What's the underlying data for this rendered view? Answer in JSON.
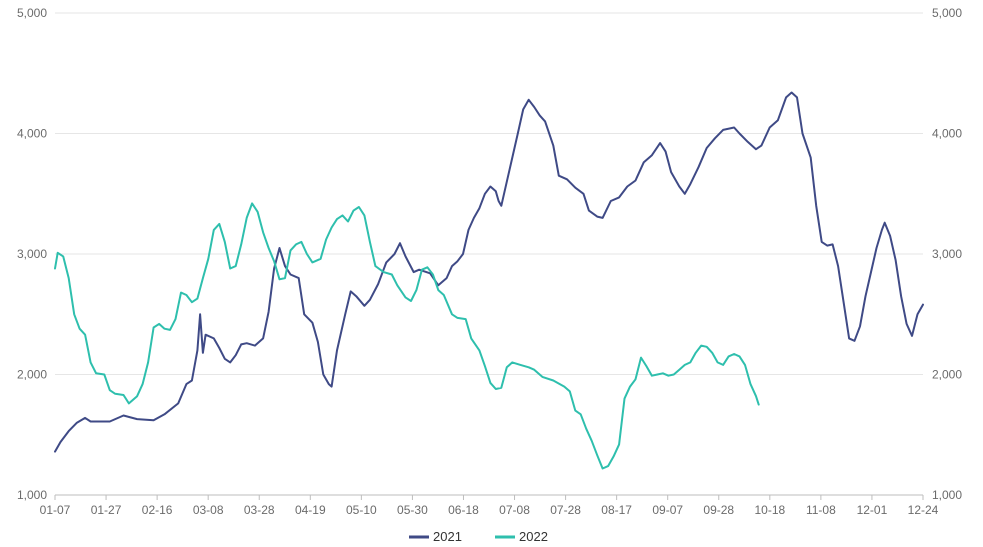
{
  "chart_data": {
    "type": "line",
    "title": "",
    "xlabel": "",
    "ylabel": "",
    "ylim": [
      1000,
      5000
    ],
    "y_ticks": [
      "1,000",
      "2,000",
      "3,000",
      "4,000",
      "5,000"
    ],
    "y_tick_values": [
      1000,
      2000,
      3000,
      4000,
      5000
    ],
    "x_ticks": [
      "01-07",
      "01-27",
      "02-16",
      "03-08",
      "03-28",
      "04-19",
      "05-10",
      "05-30",
      "06-18",
      "07-08",
      "07-28",
      "08-17",
      "09-07",
      "09-28",
      "10-18",
      "11-08",
      "12-01",
      "12-24"
    ],
    "grid": true,
    "legend_position": "bottom",
    "series": [
      {
        "name": "2021",
        "color": "#3f4a86",
        "points": [
          [
            0,
            1360
          ],
          [
            2,
            1440
          ],
          [
            5,
            1530
          ],
          [
            8,
            1600
          ],
          [
            11,
            1640
          ],
          [
            13,
            1610
          ],
          [
            20,
            1610
          ],
          [
            25,
            1660
          ],
          [
            30,
            1630
          ],
          [
            36,
            1620
          ],
          [
            40,
            1670
          ],
          [
            45,
            1760
          ],
          [
            48,
            1920
          ],
          [
            50,
            1950
          ],
          [
            52,
            2200
          ],
          [
            53,
            2500
          ],
          [
            54,
            2180
          ],
          [
            55,
            2330
          ],
          [
            58,
            2300
          ],
          [
            60,
            2220
          ],
          [
            62,
            2130
          ],
          [
            64,
            2100
          ],
          [
            66,
            2160
          ],
          [
            68,
            2250
          ],
          [
            70,
            2260
          ],
          [
            73,
            2240
          ],
          [
            76,
            2300
          ],
          [
            78,
            2520
          ],
          [
            80,
            2880
          ],
          [
            82,
            3050
          ],
          [
            84,
            2900
          ],
          [
            86,
            2830
          ],
          [
            89,
            2800
          ],
          [
            91,
            2500
          ],
          [
            94,
            2430
          ],
          [
            96,
            2270
          ],
          [
            98,
            2000
          ],
          [
            100,
            1920
          ],
          [
            101,
            1900
          ],
          [
            103,
            2200
          ],
          [
            106,
            2500
          ],
          [
            108,
            2690
          ],
          [
            110,
            2650
          ],
          [
            113,
            2570
          ],
          [
            115,
            2620
          ],
          [
            118,
            2750
          ],
          [
            121,
            2930
          ],
          [
            124,
            3000
          ],
          [
            126,
            3090
          ],
          [
            128,
            2980
          ],
          [
            131,
            2850
          ],
          [
            133,
            2870
          ],
          [
            137,
            2840
          ],
          [
            140,
            2740
          ],
          [
            143,
            2800
          ],
          [
            145,
            2900
          ],
          [
            147,
            2940
          ],
          [
            149,
            3000
          ],
          [
            151,
            3200
          ],
          [
            153,
            3300
          ],
          [
            155,
            3380
          ],
          [
            157,
            3500
          ],
          [
            159,
            3560
          ],
          [
            161,
            3520
          ],
          [
            162,
            3440
          ],
          [
            163,
            3400
          ],
          [
            165,
            3600
          ],
          [
            167,
            3800
          ],
          [
            169,
            4000
          ],
          [
            171,
            4200
          ],
          [
            173,
            4280
          ],
          [
            175,
            4220
          ],
          [
            177,
            4150
          ],
          [
            179,
            4100
          ],
          [
            182,
            3900
          ],
          [
            184,
            3650
          ],
          [
            187,
            3620
          ],
          [
            190,
            3550
          ],
          [
            193,
            3500
          ],
          [
            195,
            3360
          ],
          [
            198,
            3310
          ],
          [
            200,
            3300
          ],
          [
            203,
            3440
          ],
          [
            206,
            3470
          ],
          [
            209,
            3560
          ],
          [
            212,
            3610
          ],
          [
            215,
            3760
          ],
          [
            218,
            3820
          ],
          [
            221,
            3920
          ],
          [
            223,
            3850
          ],
          [
            225,
            3680
          ],
          [
            228,
            3560
          ],
          [
            230,
            3500
          ],
          [
            232,
            3580
          ],
          [
            235,
            3720
          ],
          [
            238,
            3880
          ],
          [
            241,
            3960
          ],
          [
            244,
            4030
          ],
          [
            248,
            4050
          ],
          [
            250,
            4000
          ],
          [
            253,
            3930
          ],
          [
            256,
            3870
          ],
          [
            258,
            3900
          ],
          [
            261,
            4050
          ],
          [
            264,
            4110
          ],
          [
            267,
            4300
          ],
          [
            269,
            4340
          ],
          [
            271,
            4300
          ],
          [
            273,
            4000
          ],
          [
            276,
            3800
          ],
          [
            278,
            3400
          ],
          [
            280,
            3100
          ],
          [
            282,
            3070
          ],
          [
            284,
            3080
          ],
          [
            286,
            2900
          ],
          [
            288,
            2600
          ],
          [
            290,
            2300
          ],
          [
            292,
            2280
          ],
          [
            294,
            2400
          ],
          [
            296,
            2650
          ],
          [
            298,
            2850
          ],
          [
            300,
            3050
          ],
          [
            302,
            3200
          ],
          [
            303,
            3260
          ],
          [
            305,
            3150
          ],
          [
            307,
            2950
          ],
          [
            309,
            2650
          ],
          [
            311,
            2420
          ],
          [
            313,
            2320
          ],
          [
            315,
            2500
          ],
          [
            317,
            2580
          ]
        ]
      },
      {
        "name": "2022",
        "color": "#2ebfad",
        "points": [
          [
            0,
            2880
          ],
          [
            1,
            3010
          ],
          [
            3,
            2980
          ],
          [
            5,
            2800
          ],
          [
            7,
            2500
          ],
          [
            9,
            2380
          ],
          [
            11,
            2330
          ],
          [
            13,
            2100
          ],
          [
            15,
            2010
          ],
          [
            18,
            2000
          ],
          [
            20,
            1870
          ],
          [
            22,
            1840
          ],
          [
            25,
            1830
          ],
          [
            27,
            1760
          ],
          [
            30,
            1820
          ],
          [
            32,
            1920
          ],
          [
            34,
            2100
          ],
          [
            36,
            2390
          ],
          [
            38,
            2420
          ],
          [
            40,
            2380
          ],
          [
            42,
            2370
          ],
          [
            44,
            2460
          ],
          [
            46,
            2680
          ],
          [
            48,
            2660
          ],
          [
            50,
            2600
          ],
          [
            52,
            2630
          ],
          [
            54,
            2800
          ],
          [
            56,
            2960
          ],
          [
            58,
            3200
          ],
          [
            60,
            3250
          ],
          [
            62,
            3100
          ],
          [
            64,
            2880
          ],
          [
            66,
            2900
          ],
          [
            68,
            3080
          ],
          [
            70,
            3300
          ],
          [
            72,
            3420
          ],
          [
            74,
            3350
          ],
          [
            76,
            3180
          ],
          [
            78,
            3050
          ],
          [
            80,
            2940
          ],
          [
            82,
            2790
          ],
          [
            84,
            2800
          ],
          [
            86,
            3030
          ],
          [
            88,
            3080
          ],
          [
            90,
            3100
          ],
          [
            92,
            3000
          ],
          [
            94,
            2930
          ],
          [
            97,
            2960
          ],
          [
            99,
            3120
          ],
          [
            101,
            3220
          ],
          [
            103,
            3290
          ],
          [
            105,
            3320
          ],
          [
            107,
            3270
          ],
          [
            109,
            3360
          ],
          [
            111,
            3390
          ],
          [
            113,
            3320
          ],
          [
            115,
            3100
          ],
          [
            117,
            2900
          ],
          [
            120,
            2850
          ],
          [
            123,
            2830
          ],
          [
            125,
            2740
          ],
          [
            128,
            2640
          ],
          [
            130,
            2610
          ],
          [
            132,
            2700
          ],
          [
            134,
            2870
          ],
          [
            136,
            2890
          ],
          [
            138,
            2830
          ],
          [
            140,
            2700
          ],
          [
            142,
            2660
          ],
          [
            145,
            2500
          ],
          [
            147,
            2470
          ],
          [
            150,
            2460
          ],
          [
            152,
            2300
          ],
          [
            155,
            2200
          ],
          [
            157,
            2070
          ],
          [
            159,
            1930
          ],
          [
            161,
            1880
          ],
          [
            163,
            1890
          ],
          [
            165,
            2060
          ],
          [
            167,
            2100
          ],
          [
            170,
            2080
          ],
          [
            173,
            2060
          ],
          [
            175,
            2040
          ],
          [
            178,
            1980
          ],
          [
            182,
            1950
          ],
          [
            186,
            1900
          ],
          [
            188,
            1860
          ],
          [
            190,
            1700
          ],
          [
            192,
            1670
          ],
          [
            194,
            1550
          ],
          [
            196,
            1450
          ],
          [
            198,
            1330
          ],
          [
            200,
            1220
          ],
          [
            202,
            1240
          ],
          [
            204,
            1320
          ],
          [
            206,
            1420
          ],
          [
            208,
            1800
          ],
          [
            210,
            1900
          ],
          [
            212,
            1960
          ],
          [
            214,
            2140
          ],
          [
            216,
            2070
          ],
          [
            218,
            1990
          ],
          [
            220,
            2000
          ],
          [
            222,
            2010
          ],
          [
            224,
            1990
          ],
          [
            226,
            2000
          ],
          [
            228,
            2040
          ],
          [
            230,
            2080
          ],
          [
            232,
            2100
          ],
          [
            234,
            2180
          ],
          [
            236,
            2240
          ],
          [
            238,
            2230
          ],
          [
            240,
            2180
          ],
          [
            242,
            2100
          ],
          [
            244,
            2080
          ],
          [
            246,
            2150
          ],
          [
            248,
            2170
          ],
          [
            250,
            2150
          ],
          [
            252,
            2080
          ],
          [
            254,
            1920
          ],
          [
            256,
            1820
          ],
          [
            257,
            1750
          ]
        ]
      }
    ]
  }
}
